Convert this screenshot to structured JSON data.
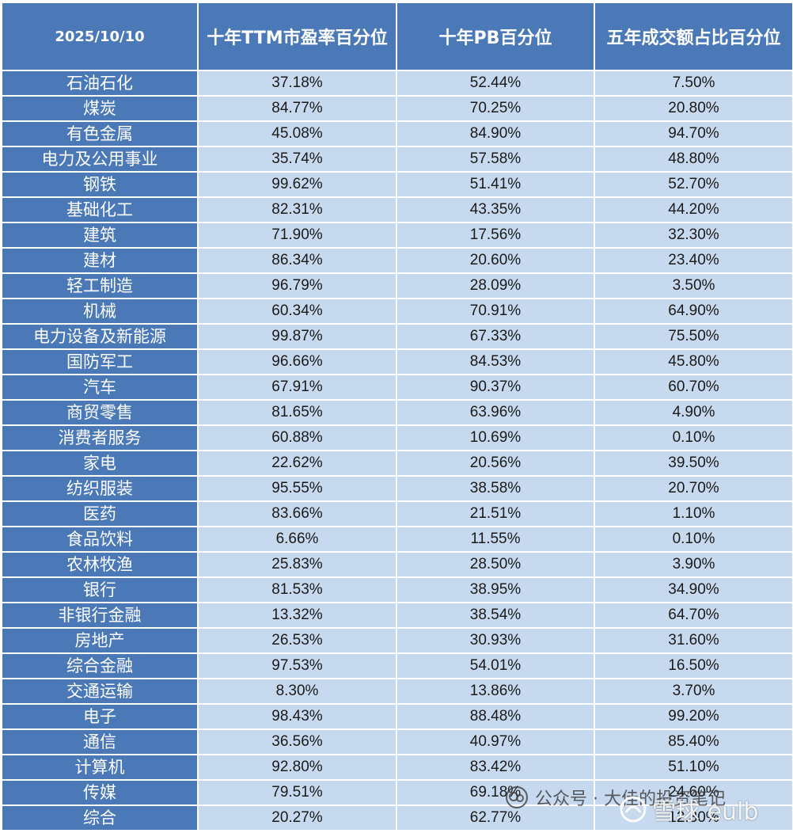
{
  "chart_data": {
    "type": "table",
    "columns": [
      "2025/10/10",
      "十年TTM市盈率百分位",
      "十年PB百分位",
      "五年成交额占比百分位"
    ],
    "rows": [
      [
        "石油石化",
        "37.18%",
        "52.44%",
        "7.50%"
      ],
      [
        "煤炭",
        "84.77%",
        "70.25%",
        "20.80%"
      ],
      [
        "有色金属",
        "45.08%",
        "84.90%",
        "94.70%"
      ],
      [
        "电力及公用事业",
        "35.74%",
        "57.58%",
        "48.80%"
      ],
      [
        "钢铁",
        "99.62%",
        "51.41%",
        "52.70%"
      ],
      [
        "基础化工",
        "82.31%",
        "43.35%",
        "44.20%"
      ],
      [
        "建筑",
        "71.90%",
        "17.56%",
        "32.30%"
      ],
      [
        "建材",
        "86.34%",
        "20.60%",
        "23.40%"
      ],
      [
        "轻工制造",
        "96.79%",
        "28.09%",
        "3.50%"
      ],
      [
        "机械",
        "60.34%",
        "70.91%",
        "64.90%"
      ],
      [
        "电力设备及新能源",
        "99.87%",
        "67.33%",
        "75.50%"
      ],
      [
        "国防军工",
        "96.66%",
        "84.53%",
        "45.80%"
      ],
      [
        "汽车",
        "67.91%",
        "90.37%",
        "60.70%"
      ],
      [
        "商贸零售",
        "81.65%",
        "63.96%",
        "4.90%"
      ],
      [
        "消费者服务",
        "60.88%",
        "10.69%",
        "0.10%"
      ],
      [
        "家电",
        "22.62%",
        "20.56%",
        "39.50%"
      ],
      [
        "纺织服装",
        "95.55%",
        "38.58%",
        "20.70%"
      ],
      [
        "医药",
        "83.66%",
        "21.51%",
        "1.10%"
      ],
      [
        "食品饮料",
        "6.66%",
        "11.55%",
        "0.10%"
      ],
      [
        "农林牧渔",
        "25.83%",
        "28.50%",
        "3.90%"
      ],
      [
        "银行",
        "81.53%",
        "38.95%",
        "34.90%"
      ],
      [
        "非银行金融",
        "13.32%",
        "38.54%",
        "64.70%"
      ],
      [
        "房地产",
        "26.53%",
        "30.93%",
        "31.60%"
      ],
      [
        "综合金融",
        "97.53%",
        "54.01%",
        "16.50%"
      ],
      [
        "交通运输",
        "8.30%",
        "13.86%",
        "3.70%"
      ],
      [
        "电子",
        "98.43%",
        "88.48%",
        "99.20%"
      ],
      [
        "通信",
        "36.56%",
        "40.97%",
        "85.40%"
      ],
      [
        "计算机",
        "92.80%",
        "83.42%",
        "51.10%"
      ],
      [
        "传媒",
        "79.51%",
        "69.18%",
        "24.60%"
      ],
      [
        "综合",
        "20.27%",
        "62.77%",
        "12.30%"
      ]
    ]
  },
  "watermark": {
    "icon": "wechat-official-account-icon",
    "text": "公众号 · 大佳的投资笔记"
  },
  "snowball": {
    "icon": "snowball-logo-icon",
    "text": "雪球 eulb"
  },
  "colors": {
    "header_bg": "#4b79b8",
    "row_label_bg": "#4b79b8",
    "cell_bg": "#c7d9ee",
    "grid": "#ffffff"
  }
}
